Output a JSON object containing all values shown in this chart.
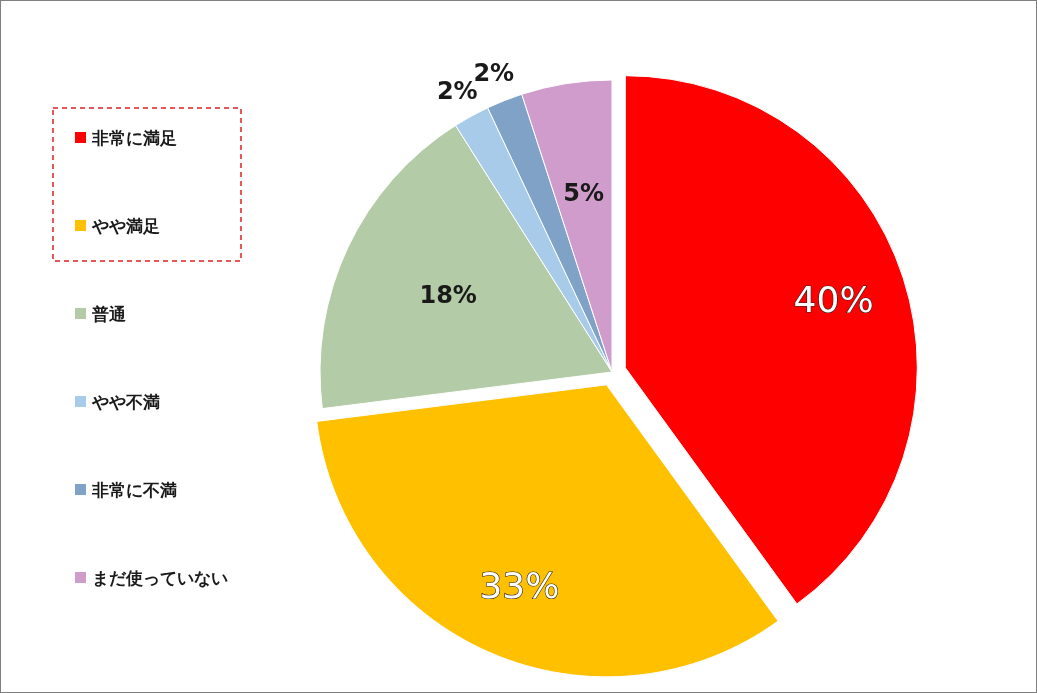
{
  "chart_data": {
    "type": "pie",
    "categories": [
      "非常に満足",
      "やや満足",
      "普通",
      "やや不満",
      "非常に不満",
      "まだ使っていない"
    ],
    "values": [
      40,
      33,
      18,
      2,
      2,
      5
    ],
    "colors": [
      "#ff0000",
      "#ffc000",
      "#b3cba6",
      "#a9cbea",
      "#7fa2c6",
      "#cf9ccb"
    ],
    "value_labels": [
      "40%",
      "33%",
      "18%",
      "2%",
      "2%",
      "5%"
    ],
    "legend": "left"
  }
}
